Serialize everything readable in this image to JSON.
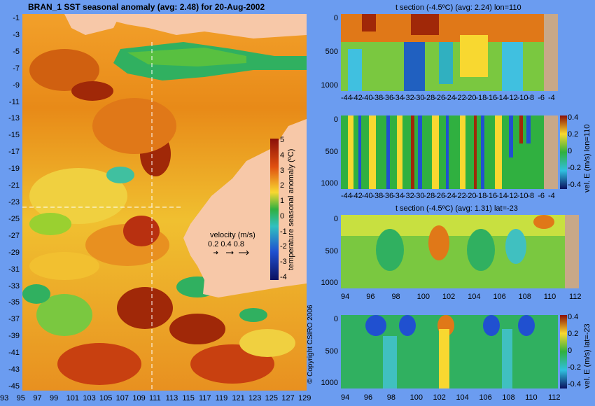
{
  "main_map": {
    "title": "BRAN_1  SST seasonal anomaly (avg: 2.48) for 20-Aug-2002",
    "lat_ticks": [
      "-1",
      "-3",
      "-5",
      "-7",
      "-9",
      "-11",
      "-13",
      "-15",
      "-17",
      "-19",
      "-21",
      "-23",
      "-25",
      "-27",
      "-29",
      "-31",
      "-33",
      "-35",
      "-37",
      "-39",
      "-41",
      "-43",
      "-45"
    ],
    "lon_ticks": [
      "93",
      "95",
      "97",
      "99",
      "101",
      "103",
      "105",
      "107",
      "109",
      "111",
      "113",
      "115",
      "117",
      "119",
      "121",
      "123",
      "125",
      "127",
      "129"
    ],
    "colorbar": {
      "label": "temperature seasonal anomaly (ºC)",
      "ticks": [
        "5",
        "4",
        "3",
        "2",
        "1",
        "0",
        "-1",
        "-2",
        "-3",
        "-4"
      ]
    },
    "velocity_legend": {
      "title": "velocity (m/s)",
      "values": "0.2 0.4 0.8"
    },
    "copyright": "© Copyright CSIRO 2006",
    "colors": {
      "land": "#f7c8a8",
      "ocean_bg": "#6b9cf0",
      "crosshair": "#ffffff"
    }
  },
  "sections": [
    {
      "title": "t section (-4.5ºC) (avg: 2.24) lon=110",
      "depth_ticks": [
        "0",
        "500",
        "1000"
      ],
      "x_ticks": [
        "-44",
        "-42",
        "-40",
        "-38",
        "-36",
        "-34",
        "-32",
        "-30",
        "-28",
        "-26",
        "-24",
        "-22",
        "-20",
        "-18",
        "-16",
        "-14",
        "-12",
        "-10",
        "-8",
        "-6",
        "-4"
      ]
    },
    {
      "title": "",
      "depth_ticks": [
        "0",
        "500",
        "1000"
      ],
      "x_ticks": [
        "-44",
        "-42",
        "-40",
        "-38",
        "-36",
        "-34",
        "-32",
        "-30",
        "-28",
        "-26",
        "-24",
        "-22",
        "-20",
        "-18",
        "-16",
        "-14",
        "-12",
        "-10",
        "-8",
        "-6",
        "-4"
      ],
      "side_label": "vel. E (m/s) lon=110",
      "colorbar_ticks": [
        "0.4",
        "0.2",
        "0",
        "-0.2",
        "-0.4"
      ]
    },
    {
      "title": "t section (-4.5ºC) (avg: 1.31) lat=-23",
      "depth_ticks": [
        "0",
        "500",
        "1000"
      ],
      "x_ticks": [
        "94",
        "96",
        "98",
        "100",
        "102",
        "104",
        "106",
        "108",
        "110",
        "112"
      ]
    },
    {
      "title": "",
      "depth_ticks": [
        "0",
        "500",
        "1000"
      ],
      "x_ticks": [
        "94",
        "96",
        "98",
        "100",
        "102",
        "104",
        "106",
        "108",
        "110",
        "112"
      ],
      "side_label": "vel. E (m/s) lat=-23",
      "colorbar_ticks": [
        "0.4",
        "0.2",
        "0",
        "-0.2",
        "-0.4"
      ]
    }
  ]
}
